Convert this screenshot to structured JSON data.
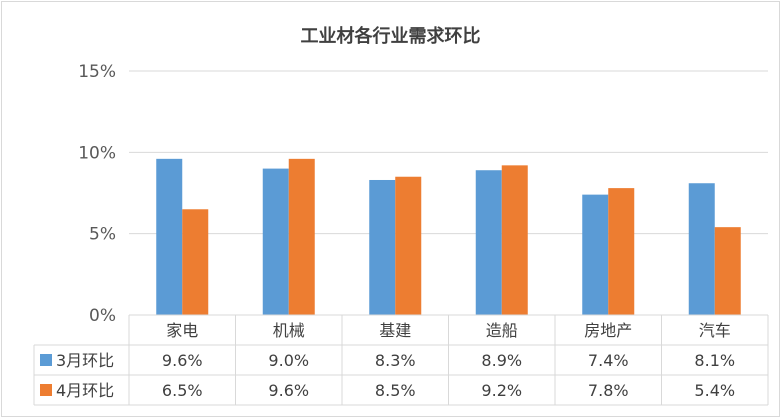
{
  "chart_data": {
    "type": "bar",
    "title": "工业材各行业需求环比",
    "categories": [
      "家电",
      "机械",
      "基建",
      "造船",
      "房地产",
      "汽车"
    ],
    "series": [
      {
        "name": "3月环比",
        "values": [
          9.6,
          9.0,
          8.3,
          8.9,
          7.4,
          8.1
        ],
        "labels": [
          "9.6%",
          "9.0%",
          "8.3%",
          "8.9%",
          "7.4%",
          "8.1%"
        ],
        "color": "#5b9bd5"
      },
      {
        "name": "4月环比",
        "values": [
          6.5,
          9.6,
          8.5,
          9.2,
          7.8,
          5.4
        ],
        "labels": [
          "6.5%",
          "9.6%",
          "8.5%",
          "9.2%",
          "7.8%",
          "5.4%"
        ],
        "color": "#ed7d31"
      }
    ],
    "yticks": [
      "0%",
      "5%",
      "10%",
      "15%"
    ],
    "ylim": [
      0,
      15
    ],
    "grid": true,
    "legend": "data-table"
  }
}
